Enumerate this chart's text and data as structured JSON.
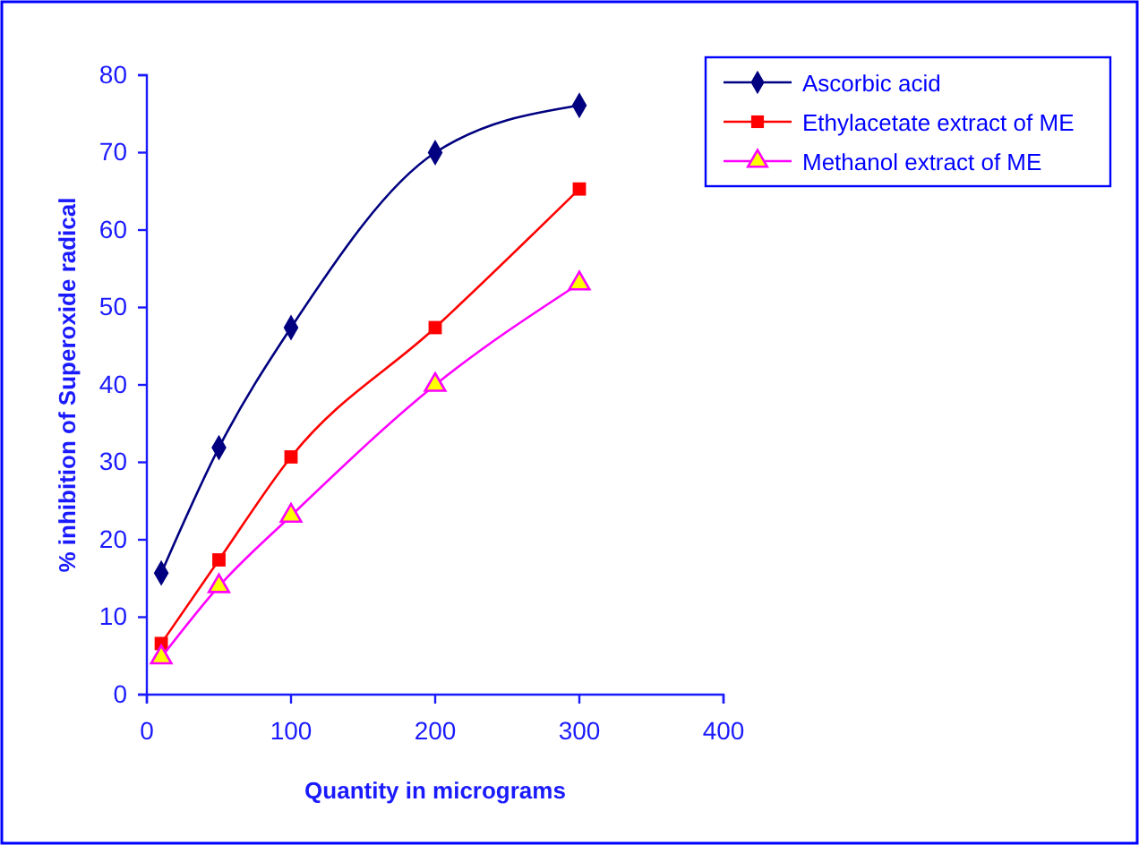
{
  "chart_data": {
    "type": "line",
    "xlabel": "Quantity in micrograms",
    "ylabel": "% inhibition of  Superoxide radical",
    "xlim": [
      0,
      400
    ],
    "xticks": [
      0,
      100,
      200,
      300,
      400
    ],
    "ylim": [
      0,
      80
    ],
    "yticks": [
      0,
      10,
      20,
      30,
      40,
      50,
      60,
      70,
      80
    ],
    "legend": "top right",
    "grid": false,
    "series": [
      {
        "name": "Ascorbic acid",
        "color": "#000080",
        "marker": "diamond",
        "x": [
          10,
          50,
          100,
          200,
          300
        ],
        "values": [
          15.7,
          31.9,
          47.4,
          70,
          76.1
        ]
      },
      {
        "name": "Ethylacetate extract of ME",
        "color": "#ff0000",
        "marker": "square",
        "x": [
          10,
          50,
          100,
          200,
          300
        ],
        "values": [
          6.6,
          17.4,
          30.7,
          47.4,
          65.3
        ]
      },
      {
        "name": "Methanol extract of ME",
        "color": "#ff00ff",
        "marker": "triangle",
        "x": [
          10,
          50,
          100,
          200,
          300
        ],
        "values": [
          4.8,
          14,
          23.1,
          40,
          53.1
        ]
      }
    ]
  }
}
